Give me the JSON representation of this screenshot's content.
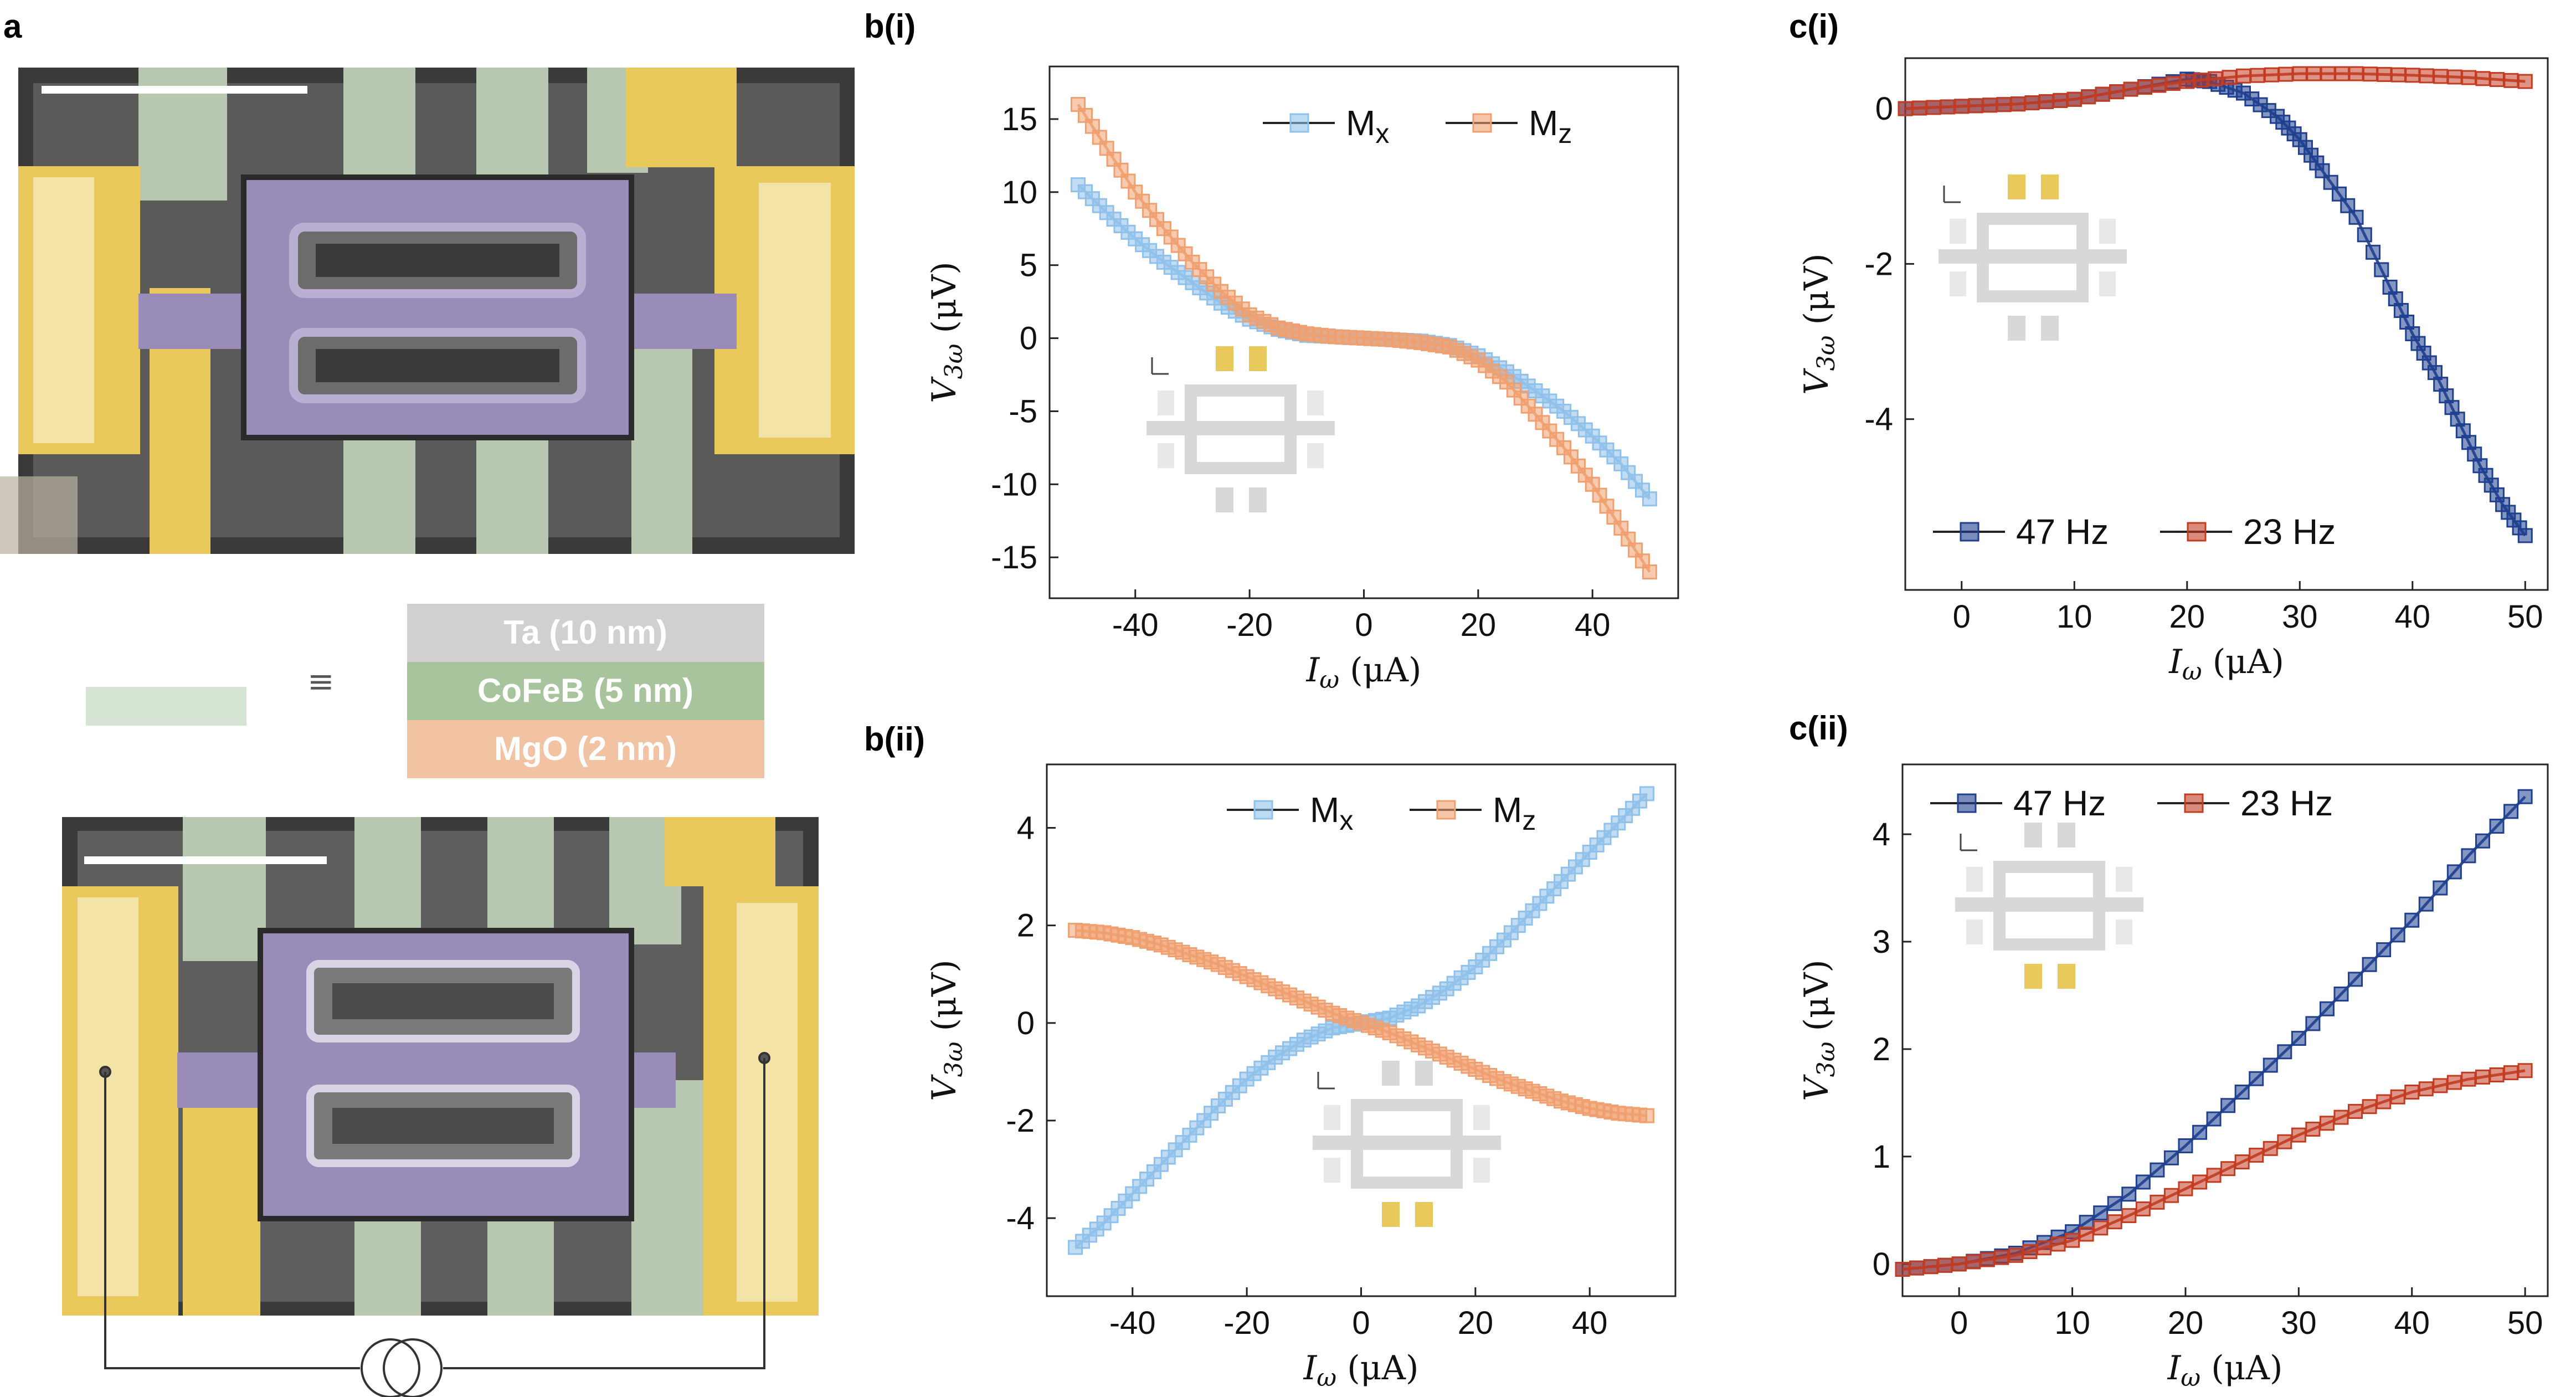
{
  "panel_labels": {
    "a": "a",
    "bi": "b(i)",
    "bii": "b(ii)",
    "ci": "c(i)",
    "cii": "c(ii)"
  },
  "stack": {
    "equiv_symbol": "≡",
    "layers": [
      {
        "label": "Ta (10 nm)",
        "color": "#d0d0d0"
      },
      {
        "label": "CoFeB (5 nm)",
        "color": "#a8c49d"
      },
      {
        "label": "MgO (2 nm)",
        "color": "#f2c3a3"
      }
    ],
    "swatch_color": "#d5e4d2"
  },
  "colors": {
    "mx": "#8fc1ea",
    "mz": "#f0a070",
    "hz47": "#1f3f8f",
    "hz23": "#c23c22",
    "yellow": "#eac95c",
    "green": "#b8c8b0",
    "purple": "#9888b8",
    "gray": "#d8d8d8"
  },
  "chart_data": [
    {
      "id": "bi",
      "type": "scatter",
      "title": "",
      "xlabel": "I_ω (μA)",
      "ylabel": "V_3ω (μV)",
      "xlim": [
        -55,
        55
      ],
      "ylim": [
        -17.8,
        18.6
      ],
      "xticks": [
        -40,
        -20,
        0,
        20,
        40
      ],
      "yticks": [
        -15,
        -10,
        -5,
        0,
        5,
        10,
        15
      ],
      "xtick_labels": [
        "-40",
        "-20",
        "0",
        "20",
        "40"
      ],
      "ytick_labels": [
        "-15",
        "-10",
        "-5",
        "0",
        "5",
        "10",
        "15"
      ],
      "legend": "top-center",
      "series": [
        {
          "name": "Mx",
          "name_main": "M",
          "name_sub": "x",
          "color_key": "mx",
          "x": [
            -50,
            -45,
            -40,
            -35,
            -30,
            -25,
            -20,
            -15,
            -10,
            -5,
            0,
            5,
            10,
            15,
            20,
            25,
            30,
            35,
            40,
            45,
            50
          ],
          "y": [
            10.5,
            8.6,
            6.8,
            5.2,
            3.8,
            2.4,
            1.3,
            0.6,
            0.2,
            0.1,
            0.0,
            -0.1,
            -0.2,
            -0.5,
            -1.2,
            -2.3,
            -3.6,
            -5.0,
            -6.7,
            -8.6,
            -11.0
          ]
        },
        {
          "name": "Mz",
          "name_main": "M",
          "name_sub": "z",
          "color_key": "mz",
          "x": [
            -50,
            -45,
            -40,
            -35,
            -30,
            -25,
            -20,
            -15,
            -10,
            -5,
            0,
            5,
            10,
            15,
            20,
            25,
            30,
            35,
            40,
            45,
            50
          ],
          "y": [
            16.0,
            13.0,
            10.0,
            7.5,
            5.2,
            3.2,
            1.6,
            0.7,
            0.3,
            0.1,
            0.0,
            -0.1,
            -0.3,
            -0.6,
            -1.5,
            -3.0,
            -5.2,
            -7.5,
            -10.0,
            -13.0,
            -16.0
          ]
        }
      ]
    },
    {
      "id": "bii",
      "type": "scatter",
      "title": "",
      "xlabel": "I_ω (μA)",
      "ylabel": "V_3ω (μV)",
      "xlim": [
        -55,
        55
      ],
      "ylim": [
        -5.6,
        5.3
      ],
      "xticks": [
        -40,
        -20,
        0,
        20,
        40
      ],
      "yticks": [
        -4,
        -2,
        0,
        2,
        4
      ],
      "xtick_labels": [
        "-40",
        "-20",
        "0",
        "20",
        "40"
      ],
      "ytick_labels": [
        "-4",
        "-2",
        "0",
        "2",
        "4"
      ],
      "legend": "top-center",
      "series": [
        {
          "name": "Mx",
          "name_main": "M",
          "name_sub": "x",
          "color_key": "mx",
          "x": [
            -50,
            -45,
            -40,
            -35,
            -30,
            -25,
            -20,
            -15,
            -10,
            -5,
            0,
            5,
            10,
            15,
            20,
            25,
            30,
            35,
            40,
            45,
            50
          ],
          "y": [
            -4.6,
            -4.1,
            -3.5,
            -2.9,
            -2.3,
            -1.7,
            -1.15,
            -0.7,
            -0.35,
            -0.1,
            0.0,
            0.1,
            0.35,
            0.7,
            1.15,
            1.7,
            2.3,
            2.9,
            3.5,
            4.1,
            4.7
          ]
        },
        {
          "name": "Mz",
          "name_main": "M",
          "name_sub": "z",
          "color_key": "mz",
          "x": [
            -50,
            -45,
            -40,
            -35,
            -30,
            -25,
            -20,
            -15,
            -10,
            -5,
            0,
            5,
            10,
            15,
            20,
            25,
            30,
            35,
            40,
            45,
            50
          ],
          "y": [
            1.9,
            1.85,
            1.75,
            1.6,
            1.4,
            1.2,
            0.95,
            0.7,
            0.45,
            0.2,
            0.0,
            -0.2,
            -0.45,
            -0.7,
            -0.95,
            -1.2,
            -1.4,
            -1.6,
            -1.75,
            -1.85,
            -1.9
          ]
        }
      ]
    },
    {
      "id": "ci",
      "type": "scatter",
      "title": "",
      "xlabel": "I_ω (μA)",
      "ylabel": "V_3ω (μV)",
      "xlim": [
        -5,
        52
      ],
      "ylim": [
        -6.2,
        0.65
      ],
      "xticks": [
        0,
        10,
        20,
        30,
        40,
        50
      ],
      "yticks": [
        -4,
        -2,
        0
      ],
      "xtick_labels": [
        "0",
        "10",
        "20",
        "30",
        "40",
        "50"
      ],
      "ytick_labels": [
        "-4",
        "-2",
        "0"
      ],
      "legend": "bottom-left",
      "series": [
        {
          "name": "47 Hz",
          "color_key": "hz47",
          "x": [
            -5,
            0,
            5,
            10,
            15,
            20,
            22,
            25,
            28,
            30,
            32,
            35,
            38,
            40,
            42,
            44,
            46,
            48,
            50
          ],
          "y": [
            0.0,
            0.03,
            0.06,
            0.12,
            0.25,
            0.38,
            0.35,
            0.2,
            -0.1,
            -0.4,
            -0.8,
            -1.4,
            -2.3,
            -2.9,
            -3.4,
            -4.0,
            -4.6,
            -5.1,
            -5.5
          ]
        },
        {
          "name": "23 Hz",
          "color_key": "hz23",
          "x": [
            -5,
            0,
            5,
            10,
            15,
            20,
            25,
            30,
            35,
            40,
            45,
            50
          ],
          "y": [
            0.0,
            0.03,
            0.06,
            0.12,
            0.25,
            0.35,
            0.42,
            0.45,
            0.45,
            0.43,
            0.4,
            0.35
          ]
        }
      ]
    },
    {
      "id": "cii",
      "type": "scatter",
      "title": "",
      "xlabel": "I_ω (μA)",
      "ylabel": "V_3ω (μV)",
      "xlim": [
        -5,
        52
      ],
      "ylim": [
        -0.3,
        4.65
      ],
      "xticks": [
        0,
        10,
        20,
        30,
        40,
        50
      ],
      "yticks": [
        0,
        1,
        2,
        3,
        4
      ],
      "xtick_labels": [
        "0",
        "10",
        "20",
        "30",
        "40",
        "50"
      ],
      "ytick_labels": [
        "0",
        "1",
        "2",
        "3",
        "4"
      ],
      "legend": "top-left",
      "series": [
        {
          "name": "47 Hz",
          "color_key": "hz47",
          "x": [
            -5,
            0,
            5,
            10,
            15,
            20,
            25,
            30,
            35,
            40,
            45,
            50
          ],
          "y": [
            -0.05,
            0.0,
            0.1,
            0.3,
            0.65,
            1.1,
            1.6,
            2.1,
            2.65,
            3.2,
            3.8,
            4.35
          ]
        },
        {
          "name": "23 Hz",
          "color_key": "hz23",
          "x": [
            -5,
            0,
            5,
            10,
            15,
            20,
            25,
            30,
            35,
            40,
            45,
            50
          ],
          "y": [
            -0.05,
            0.0,
            0.08,
            0.22,
            0.45,
            0.7,
            0.95,
            1.2,
            1.42,
            1.6,
            1.72,
            1.8
          ]
        }
      ]
    }
  ]
}
